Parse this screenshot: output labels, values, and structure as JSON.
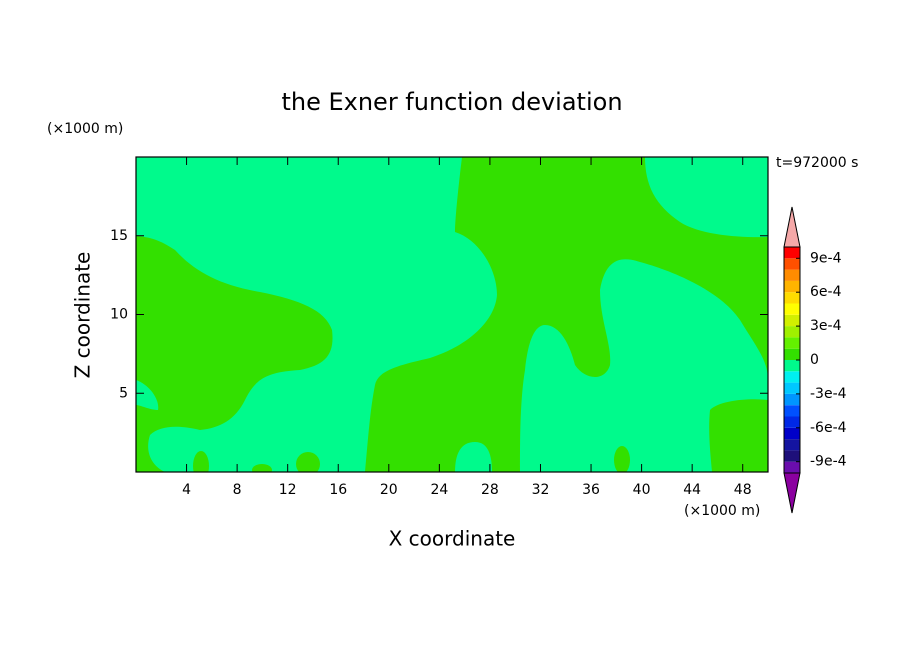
{
  "chart_data": {
    "type": "contour",
    "title": "the Exner function deviation",
    "xlabel": "X coordinate",
    "ylabel": "Z coordinate",
    "x_unit": "(×1000 m)",
    "y_unit": "(×1000 m)",
    "time_label": "t=972000 s",
    "xlim": [
      0,
      50
    ],
    "ylim": [
      0,
      20
    ],
    "xticks": [
      4,
      8,
      12,
      16,
      20,
      24,
      28,
      32,
      36,
      40,
      44,
      48
    ],
    "yticks": [
      5,
      10,
      15
    ],
    "colorbar": {
      "levels": [
        -0.001,
        -0.0009,
        -0.0008,
        -0.0007,
        -0.0006,
        -0.0005,
        -0.0004,
        -0.0003,
        -0.0002,
        -0.0001,
        0,
        0.0001,
        0.0002,
        0.0003,
        0.0004,
        0.0005,
        0.0006,
        0.0007,
        0.0008,
        0.0009,
        0.001
      ],
      "colors": [
        "#6a0dad",
        "#1e0f7a",
        "#1414a0",
        "#0000c8",
        "#0028e6",
        "#0050ff",
        "#0096ff",
        "#00c8ff",
        "#00f0f0",
        "#00fa8c",
        "#33e000",
        "#64f000",
        "#a0f000",
        "#d2f000",
        "#ffff00",
        "#ffdc00",
        "#ffb400",
        "#ff8c00",
        "#ff5000",
        "#ff0000"
      ],
      "extend_colors": [
        "#8b00a0",
        "#f5a8a8"
      ],
      "ticks": [
        {
          "value": -0.0009,
          "label": "-9e-4"
        },
        {
          "value": -0.0006,
          "label": "-6e-4"
        },
        {
          "value": -0.0003,
          "label": "-3e-4"
        },
        0,
        {
          "value": 0.0003,
          "label": "3e-4"
        },
        {
          "value": 0.0006,
          "label": "6e-4"
        },
        {
          "value": 0.0009,
          "label": "9e-4"
        }
      ]
    }
  }
}
